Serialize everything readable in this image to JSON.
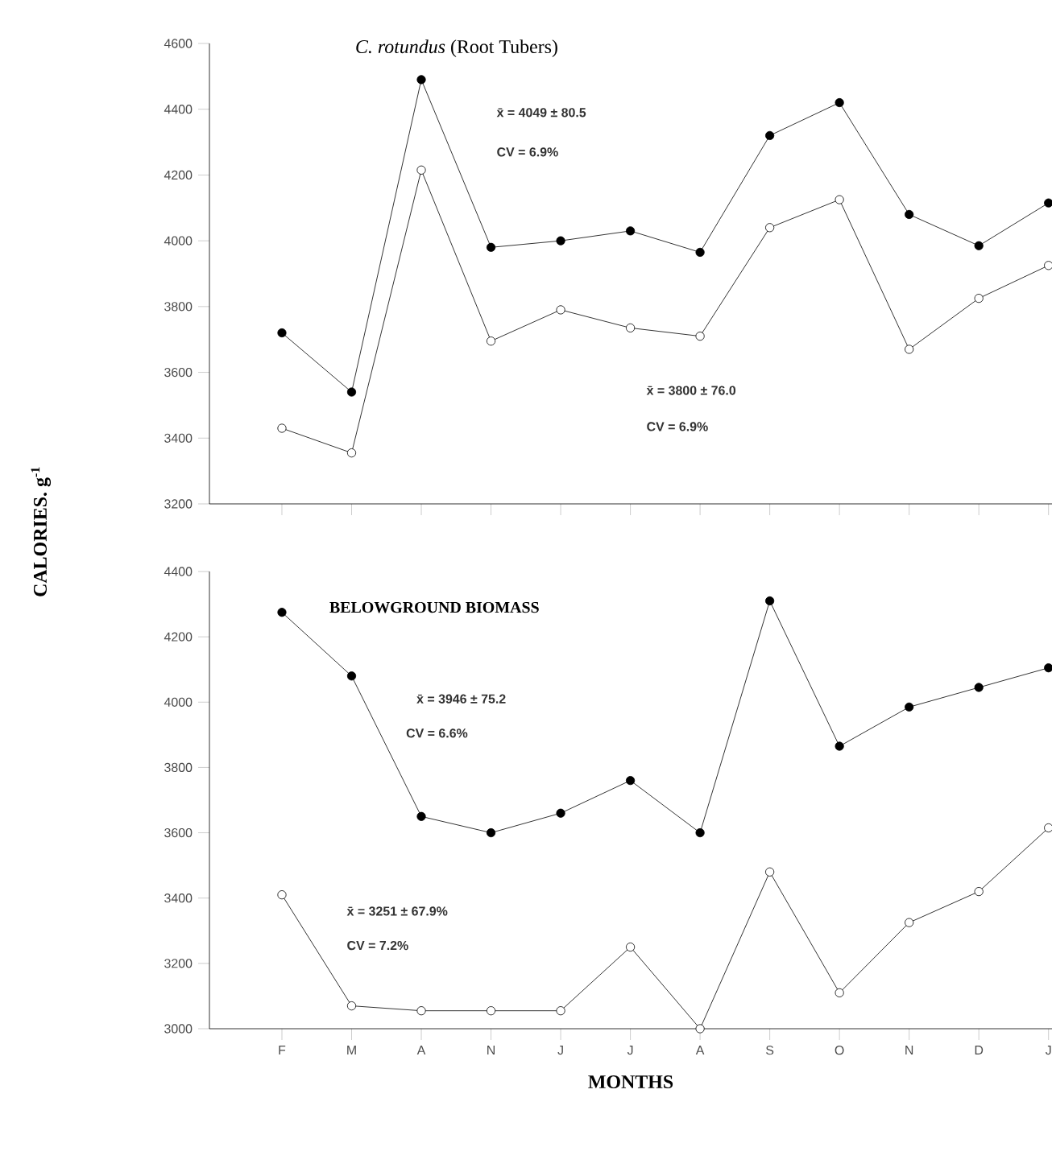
{
  "chart_data": [
    {
      "type": "line",
      "title": "*C. rotundus* (Root Tubers)",
      "ylabel": "CALORIES. g$^{-1}$",
      "categories": [
        null,
        null,
        null,
        null,
        null,
        null,
        null,
        null,
        null,
        null,
        null,
        null
      ],
      "series": [
        {
          "color": "#000000",
          "values": [
            3720,
            3540,
            4490,
            3980,
            4000,
            4030,
            3965,
            4320,
            4420,
            4080,
            3985,
            4115
          ]
        },
        {
          "color": "#000000",
          "values": [
            3430,
            3355,
            4215,
            3695,
            3790,
            3735,
            3710,
            4040,
            4125,
            3670,
            3825,
            3925
          ]
        }
      ],
      "ylim": [
        3200,
        4600
      ],
      "yticks": [
        3200,
        3400,
        3600,
        3800,
        4000,
        4200,
        4400,
        4600
      ],
      "marker": "circle",
      "annotations": [
        "x̄ = 4049 ± 80.5",
        "CV = 6.9%",
        "x̄ = 3800 ± 76.0",
        "CV = 6.9%"
      ]
    },
    {
      "type": "line",
      "title": "BELOWGROUND BIOMASS",
      "xlabel": "MONTHS",
      "categories": [
        "F",
        "M",
        "A",
        "N",
        "J",
        "J",
        "A",
        "S",
        "O",
        "N",
        "D",
        "J"
      ],
      "series": [
        {
          "color": "#000000",
          "values": [
            4275,
            4080,
            3650,
            3600,
            3660,
            3760,
            3600,
            4310,
            3865,
            3985,
            4045,
            4105
          ]
        },
        {
          "color": "#000000",
          "values": [
            3410,
            3070,
            3055,
            3055,
            3055,
            3250,
            3000,
            3480,
            3110,
            3325,
            3420,
            3615
          ]
        }
      ],
      "ylim": [
        3000,
        4400
      ],
      "yticks": [
        3000,
        3200,
        3400,
        3600,
        3800,
        4000,
        4200,
        4400
      ],
      "marker": "circle",
      "annotations": [
        "x̄ = 3946 ± 75.2",
        "CV = 6.6%",
        "x̄ = 3251 ± 67.9%",
        "CV = 7.2%"
      ]
    }
  ]
}
